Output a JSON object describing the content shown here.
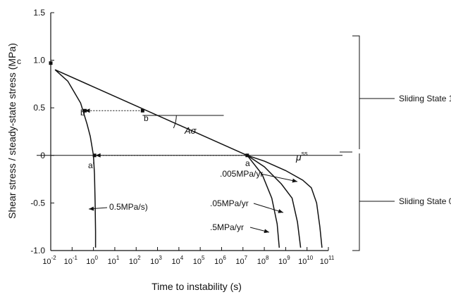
{
  "chart_data": {
    "type": "line",
    "x_scale": "log",
    "xlim_exponent": [
      -2,
      11
    ],
    "ylim": [
      -1.0,
      1.5
    ],
    "xlabel": "Time to instability (s)",
    "ylabel": "Shear stress / steady-state stress (MPa)",
    "y_ticks": [
      "-1.0",
      "-0.5",
      "0",
      "0.5",
      "1.0",
      "1.5"
    ],
    "x_ticks": [
      {
        "exp": -2,
        "label": "-2"
      },
      {
        "exp": -1,
        "label": "-1"
      },
      {
        "exp": 0,
        "label": "0"
      },
      {
        "exp": 1,
        "label": "1"
      },
      {
        "exp": 2,
        "label": "2"
      },
      {
        "exp": 3,
        "label": "3"
      },
      {
        "exp": 4,
        "label": "4"
      },
      {
        "exp": 5,
        "label": "5"
      },
      {
        "exp": 6,
        "label": "6"
      },
      {
        "exp": 7,
        "label": "7"
      },
      {
        "exp": 8,
        "label": "8"
      },
      {
        "exp": 9,
        "label": "9"
      },
      {
        "exp": 10,
        "label": "10"
      },
      {
        "exp": 11,
        "label": "11"
      }
    ],
    "x_tick_base": "10",
    "series": [
      {
        "id": "sliding-line",
        "points": [
          [
            -1.8,
            0.9
          ],
          [
            7.2,
            0.0
          ]
        ]
      },
      {
        "id": "curve-0.5MPa/s",
        "points": [
          [
            -1.8,
            0.9
          ],
          [
            -1.2,
            0.78
          ],
          [
            -0.6,
            0.55
          ],
          [
            -0.3,
            0.33
          ],
          [
            -0.15,
            0.2
          ],
          [
            0.0,
            0.0
          ],
          [
            0.05,
            -0.2
          ],
          [
            0.08,
            -0.5
          ],
          [
            0.1,
            -0.8
          ],
          [
            0.1,
            -0.97
          ]
        ]
      },
      {
        "id": "curve-.005MPa/yr",
        "points": [
          [
            7.2,
            0.0
          ],
          [
            8.0,
            -0.06
          ],
          [
            9.0,
            -0.16
          ],
          [
            9.8,
            -0.26
          ],
          [
            10.2,
            -0.34
          ],
          [
            10.45,
            -0.5
          ],
          [
            10.6,
            -0.75
          ],
          [
            10.7,
            -0.97
          ]
        ]
      },
      {
        "id": "curve-.05MPa/yr",
        "points": [
          [
            7.2,
            0.0
          ],
          [
            8.0,
            -0.12
          ],
          [
            8.8,
            -0.3
          ],
          [
            9.3,
            -0.45
          ],
          [
            9.55,
            -0.7
          ],
          [
            9.7,
            -0.97
          ]
        ]
      },
      {
        "id": "curve-.5MPa/yr",
        "points": [
          [
            7.2,
            0.0
          ],
          [
            7.9,
            -0.2
          ],
          [
            8.35,
            -0.45
          ],
          [
            8.6,
            -0.72
          ],
          [
            8.7,
            -0.97
          ]
        ]
      }
    ],
    "dotted_arrows": [
      {
        "from": [
          2.3,
          0.47
        ],
        "to": [
          -0.4,
          0.47
        ]
      },
      {
        "from": [
          7.1,
          0.0
        ],
        "to": [
          0.1,
          0.0
        ]
      }
    ],
    "horizontal_lines": [
      {
        "id": "tangent-ref",
        "from": [
          2.3,
          0.42
        ],
        "to": [
          6.1,
          0.42
        ]
      },
      {
        "id": "mu-ss",
        "from": [
          -2.5,
          0.0
        ],
        "to": [
          11,
          0.0
        ]
      }
    ],
    "points": [
      {
        "id": "c",
        "x": -2.0,
        "y": 0.97
      },
      {
        "id": "b-prime",
        "x": -0.4,
        "y": 0.47
      },
      {
        "id": "b",
        "x": 2.3,
        "y": 0.47
      },
      {
        "id": "a-prime",
        "x": 0.05,
        "y": 0.0
      },
      {
        "id": "a",
        "x": 7.2,
        "y": 0.0
      }
    ],
    "annotations": {
      "c": "c",
      "b_prime": "b'",
      "b": "b",
      "a_prime": "a'",
      "a": "a",
      "a_sigma": "Aσ",
      "mu_ss": "μ",
      "mu_ss_sup": "ss",
      "rate_0_5_mpa_s": "0.5MPa/s)",
      "rate_005": ".005MPa/yr",
      "rate_05": ".05MPa/yr",
      "rate_5": ".5MPa/yr"
    },
    "states": {
      "state_1": "Sliding State 1",
      "state_0": "Sliding State 0"
    }
  }
}
